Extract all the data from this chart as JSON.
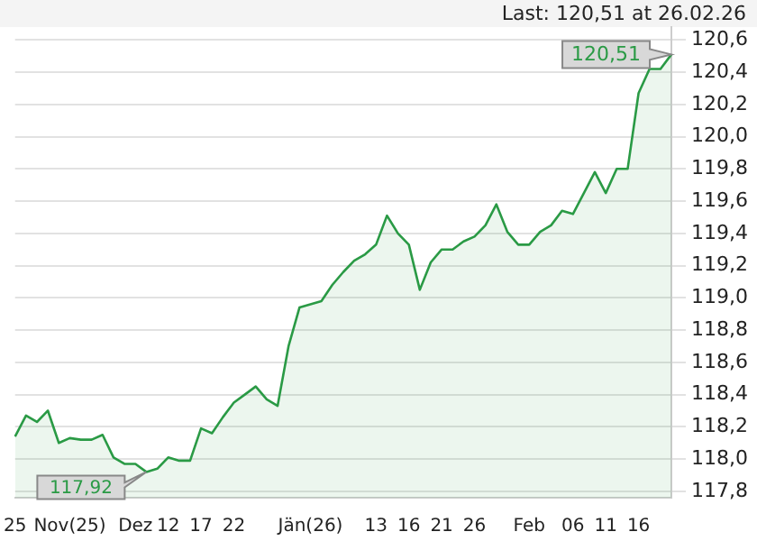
{
  "chart_data": {
    "type": "area",
    "categories": [
      "25",
      null,
      null,
      null,
      null,
      "Nov(25)",
      null,
      null,
      null,
      null,
      null,
      "Dez",
      null,
      null,
      "12",
      null,
      null,
      "17",
      null,
      null,
      "22",
      null,
      null,
      null,
      null,
      null,
      null,
      "Jän(26)",
      null,
      null,
      null,
      null,
      null,
      "13",
      null,
      null,
      "16",
      null,
      null,
      "21",
      null,
      null,
      "26",
      null,
      null,
      null,
      null,
      "Feb",
      null,
      null,
      null,
      "06",
      null,
      null,
      "11",
      null,
      null,
      "16",
      null,
      null,
      null
    ],
    "series": [
      {
        "color": "#2a9a45",
        "values": [
          118.14,
          118.27,
          118.23,
          118.3,
          118.1,
          118.13,
          118.12,
          118.12,
          118.15,
          118.01,
          117.97,
          117.97,
          117.92,
          117.94,
          118.01,
          117.99,
          117.99,
          118.19,
          118.16,
          118.26,
          118.35,
          118.4,
          118.45,
          118.37,
          118.33,
          118.7,
          118.94,
          118.96,
          118.98,
          119.08,
          119.16,
          119.23,
          119.27,
          119.33,
          119.51,
          119.4,
          119.33,
          119.05,
          119.22,
          119.3,
          119.3,
          119.35,
          119.38,
          119.45,
          119.58,
          119.41,
          119.33,
          119.33,
          119.41,
          119.45,
          119.54,
          119.52,
          119.65,
          119.78,
          119.65,
          119.8,
          119.8,
          120.27,
          120.42,
          120.42,
          120.51
        ]
      }
    ],
    "ylim": [
      117.76,
      120.68
    ],
    "yticks": [
      {
        "value": 117.8,
        "label": "117,8"
      },
      {
        "value": 118.0,
        "label": "118,0"
      },
      {
        "value": 118.2,
        "label": "118,2"
      },
      {
        "value": 118.4,
        "label": "118,4"
      },
      {
        "value": 118.6,
        "label": "118,6"
      },
      {
        "value": 118.8,
        "label": "118,8"
      },
      {
        "value": 119.0,
        "label": "119,0"
      },
      {
        "value": 119.2,
        "label": "119,2"
      },
      {
        "value": 119.4,
        "label": "119,4"
      },
      {
        "value": 119.6,
        "label": "119,6"
      },
      {
        "value": 119.8,
        "label": "119,8"
      },
      {
        "value": 120.0,
        "label": "120,0"
      },
      {
        "value": 120.2,
        "label": "120,2"
      },
      {
        "value": 120.4,
        "label": "120,4"
      },
      {
        "value": 120.6,
        "label": "120,6"
      }
    ],
    "grid": "y",
    "legend": false,
    "marker": "none",
    "line_style": "solid",
    "annotations": [
      "Last: 120,51 at 26.02.26",
      "120,51",
      "117,92"
    ]
  }
}
